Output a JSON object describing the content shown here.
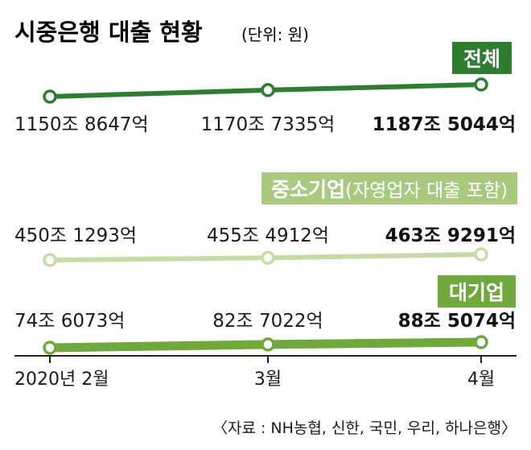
{
  "title": "시중은행 대출 현황",
  "unit_note": "(단위: 원)",
  "source": "〈자료 : NH농협, 신한, 국민, 우리, 하나은행〉",
  "colors": {
    "total": "#2e7d32",
    "sme": "#c5dba4",
    "large": "#6fa83c",
    "total_badge": "#2e7d32",
    "sme_badge": "#a8c97f",
    "large_badge": "#6fa83c"
  },
  "chart_data": {
    "type": "line",
    "categories": [
      "2020년 2월",
      "3월",
      "4월"
    ],
    "series": [
      {
        "name": "전체",
        "values": [
          11508647,
          11707335,
          11875044
        ],
        "labels": [
          "1150조 8647억",
          "1170조 7335억",
          "1187조 5044억"
        ]
      },
      {
        "name": "중소기업",
        "name_note": "(자영업자 대출 포함)",
        "values": [
          4501293,
          4554912,
          4639291
        ],
        "labels": [
          "450조 1293억",
          "455조 4912억",
          "463조 9291억"
        ]
      },
      {
        "name": "대기업",
        "values": [
          746073,
          827022,
          885074
        ],
        "labels": [
          "74조 6073억",
          "82조 7022억",
          "88조 5074억"
        ]
      }
    ],
    "value_unit": "억 원",
    "legend": "badge labels above each line"
  }
}
